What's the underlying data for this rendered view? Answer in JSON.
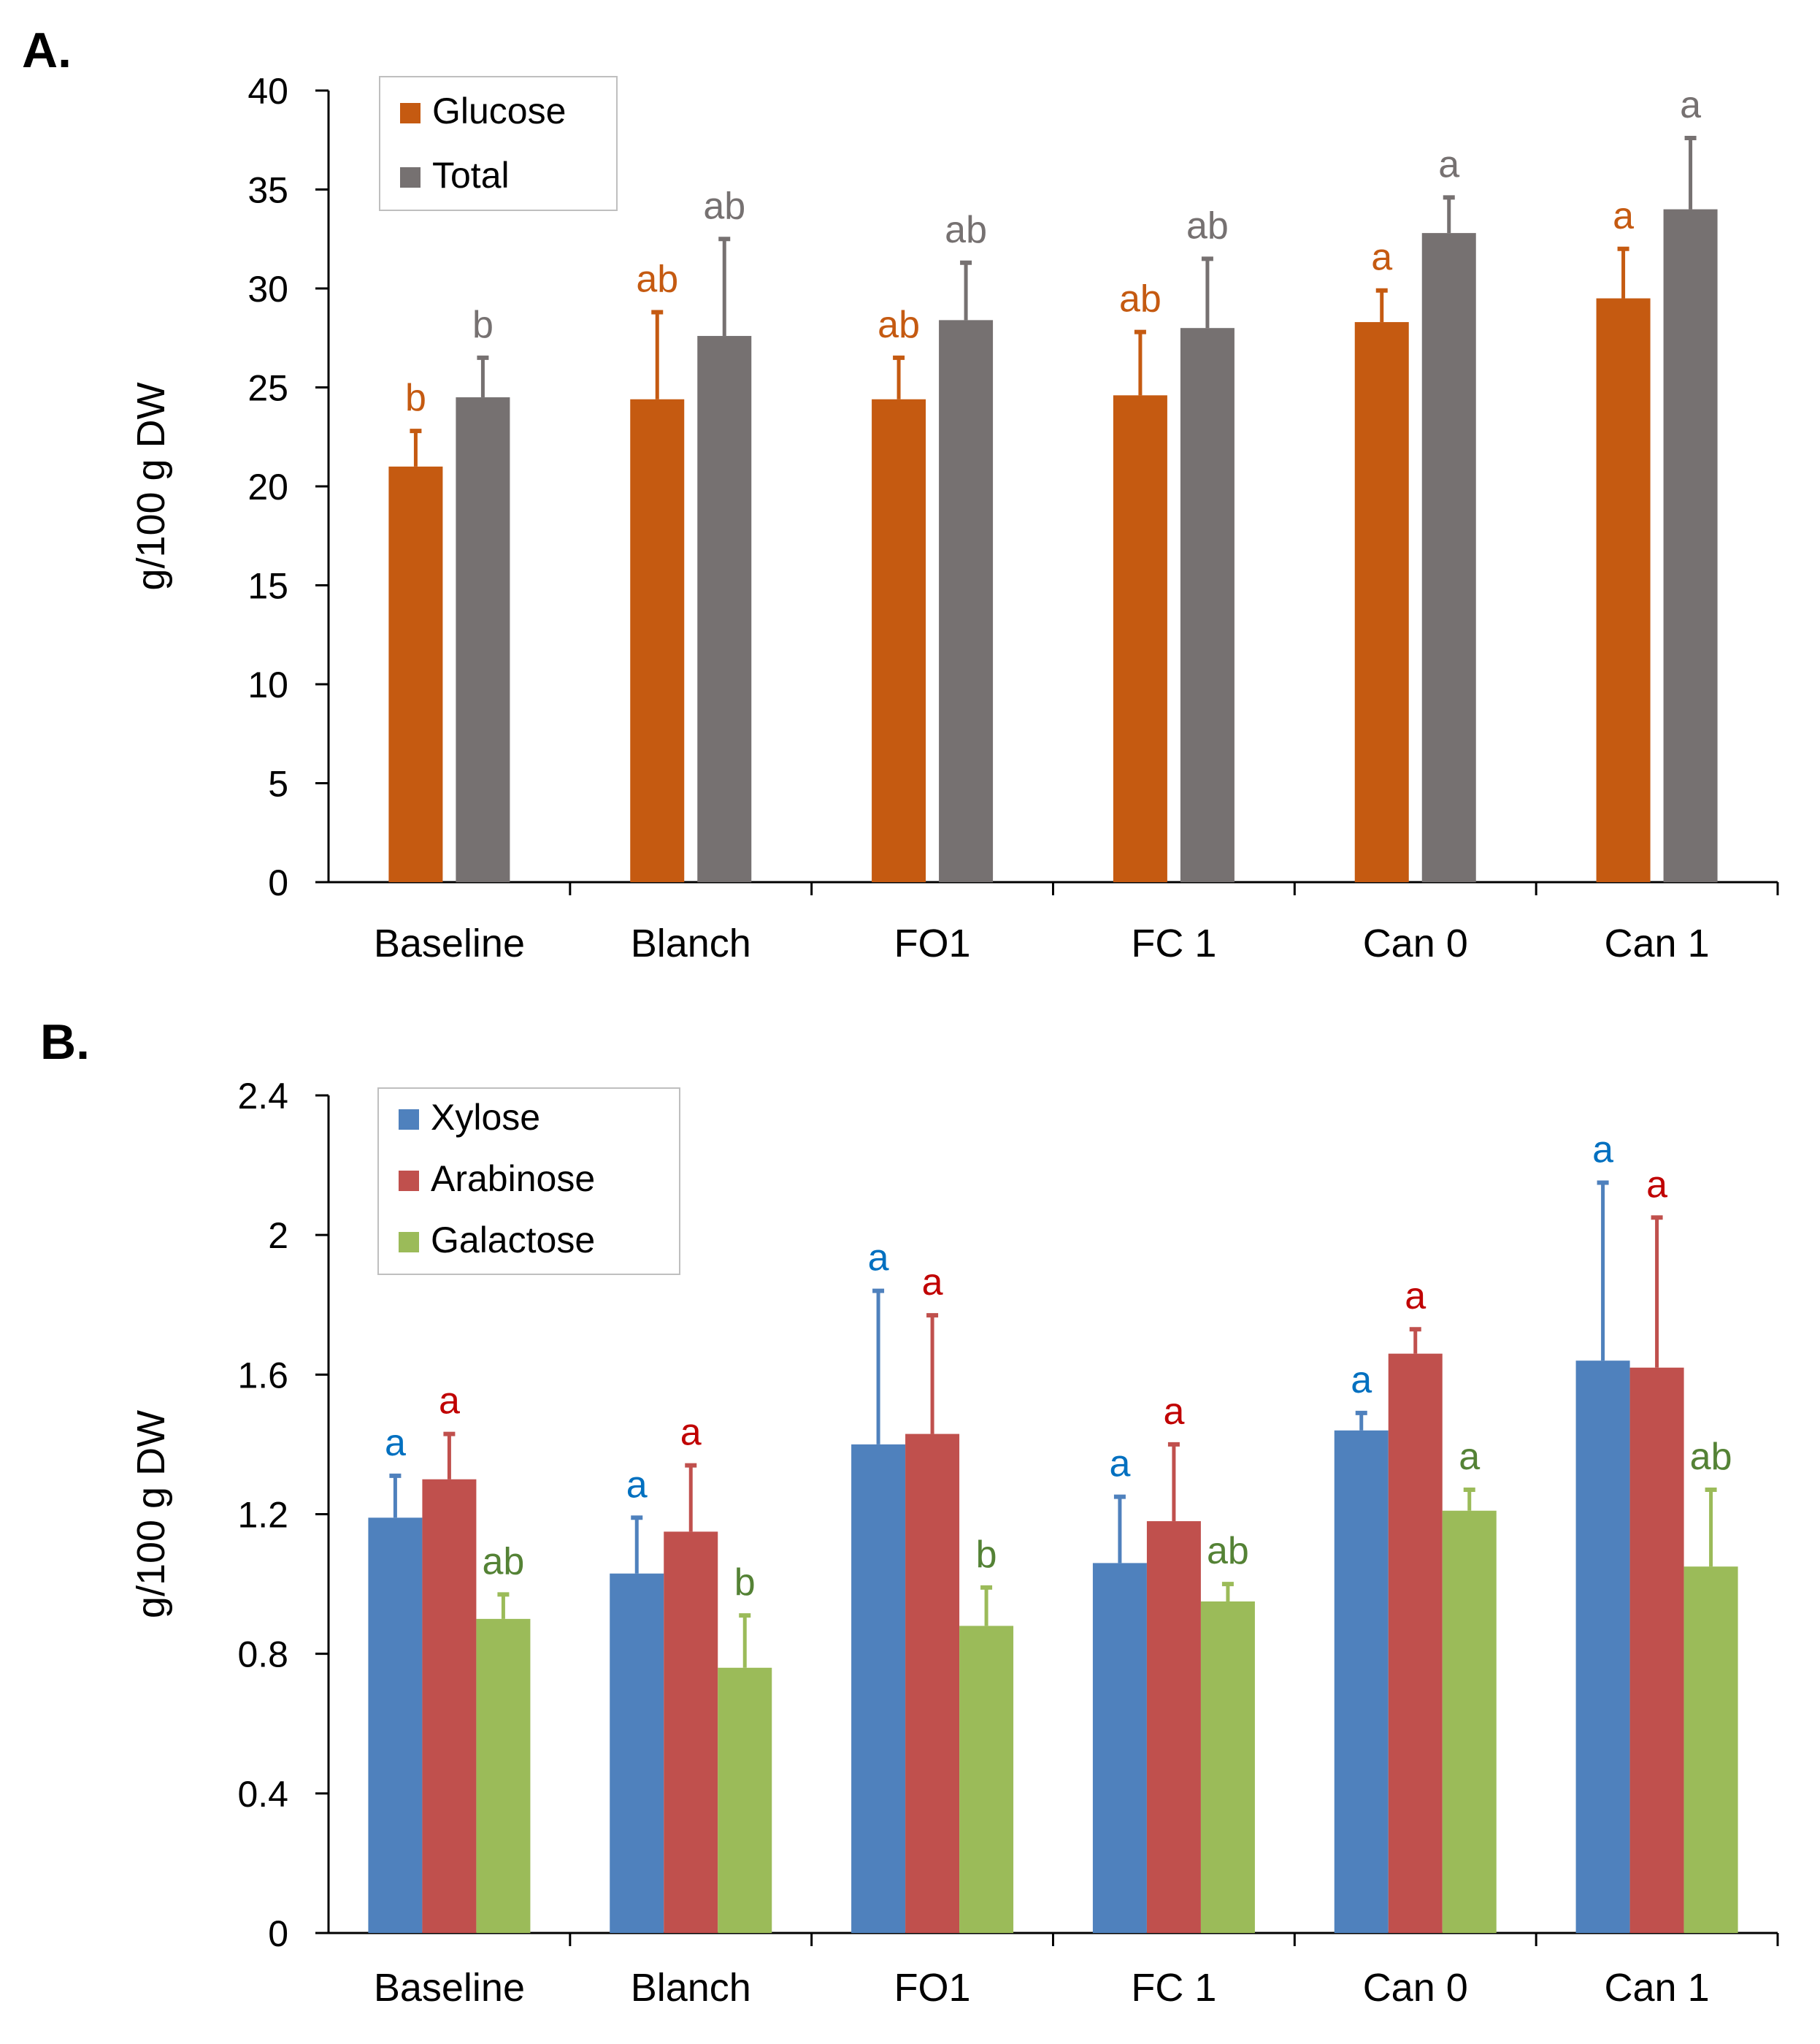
{
  "chart_data": [
    {
      "type": "bar",
      "panel_label": "A.",
      "ylabel": "g/100 g DW",
      "ylim": [
        0,
        40
      ],
      "yticks": [
        "0",
        "5",
        "10",
        "15",
        "20",
        "25",
        "30",
        "35",
        "40"
      ],
      "ytick_values": [
        0,
        5,
        10,
        15,
        20,
        25,
        30,
        35,
        40
      ],
      "categories": [
        "Baseline",
        "Blanch",
        "FO1",
        "FC 1",
        "Can 0",
        "Can 1"
      ],
      "legend_position": "top-left",
      "series": [
        {
          "name": "Glucose",
          "color": "#C55A11",
          "values": [
            21.0,
            24.4,
            24.4,
            24.6,
            28.3,
            29.5
          ],
          "errors": [
            1.8,
            4.4,
            2.1,
            3.2,
            1.6,
            2.5
          ],
          "letters": [
            "b",
            "ab",
            "ab",
            "ab",
            "a",
            "a"
          ]
        },
        {
          "name": "Total",
          "color": "#767171",
          "values": [
            24.5,
            27.6,
            28.4,
            28.0,
            32.8,
            34.0
          ],
          "errors": [
            2.0,
            4.9,
            2.9,
            3.5,
            1.8,
            3.6
          ],
          "letters": [
            "b",
            "ab",
            "ab",
            "ab",
            "a",
            "a"
          ]
        }
      ]
    },
    {
      "type": "bar",
      "panel_label": "B.",
      "ylabel": "g/100 g DW",
      "ylim": [
        0,
        2.4
      ],
      "yticks": [
        "0",
        "0.4",
        "0.8",
        "1.2",
        "1.6",
        "2",
        "2.4"
      ],
      "ytick_values": [
        0,
        0.4,
        0.8,
        1.2,
        1.6,
        2.0,
        2.4
      ],
      "categories": [
        "Baseline",
        "Blanch",
        "FO1",
        "FC 1",
        "Can 0",
        "Can 1"
      ],
      "legend_position": "top-left",
      "series": [
        {
          "name": "Xylose",
          "color": "#4F81BD",
          "letter_color": "#0070C0",
          "values": [
            1.19,
            1.03,
            1.4,
            1.06,
            1.44,
            1.64
          ],
          "errors": [
            0.12,
            0.16,
            0.44,
            0.19,
            0.05,
            0.51
          ],
          "letters": [
            "a",
            "a",
            "a",
            "a",
            "a",
            "a"
          ]
        },
        {
          "name": "Arabinose",
          "color": "#C0504D",
          "letter_color": "#C00000",
          "values": [
            1.3,
            1.15,
            1.43,
            1.18,
            1.66,
            1.62
          ],
          "errors": [
            0.13,
            0.19,
            0.34,
            0.22,
            0.07,
            0.43
          ],
          "letters": [
            "a",
            "a",
            "a",
            "a",
            "a",
            "a"
          ]
        },
        {
          "name": "Galactose",
          "color": "#9BBB59",
          "letter_color": "#548235",
          "values": [
            0.9,
            0.76,
            0.88,
            0.95,
            1.21,
            1.05
          ],
          "errors": [
            0.07,
            0.15,
            0.11,
            0.05,
            0.06,
            0.22
          ],
          "letters": [
            "ab",
            "b",
            "b",
            "ab",
            "a",
            "ab"
          ]
        }
      ]
    }
  ]
}
